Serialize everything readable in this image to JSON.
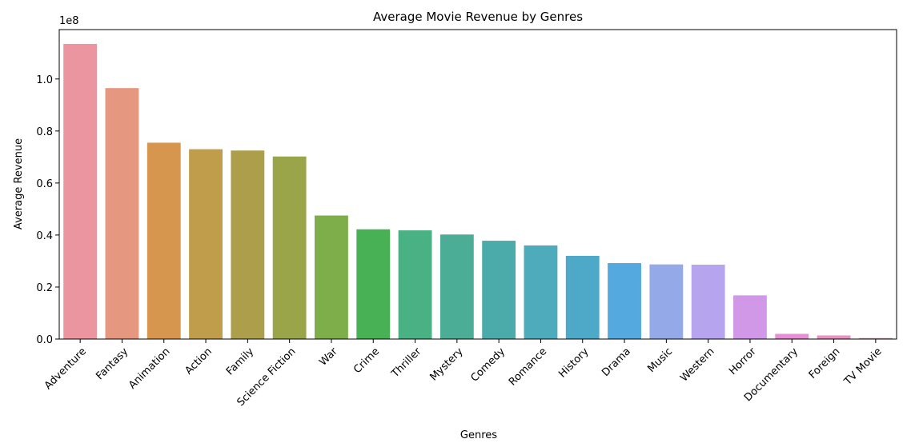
{
  "chart_data": {
    "type": "bar",
    "title": "Average Movie Revenue by Genres",
    "xlabel": "Genres",
    "ylabel": "Average Revenue",
    "y_offset_label": "1e8",
    "ylim": [
      0,
      1.19
    ],
    "yticks": [
      0.0,
      0.2,
      0.4,
      0.6,
      0.8,
      1.0
    ],
    "ytick_labels": [
      "0.0",
      "0.2",
      "0.4",
      "0.6",
      "0.8",
      "1.0"
    ],
    "grid": false,
    "categories": [
      "Adventure",
      "Fantasy",
      "Animation",
      "Action",
      "Family",
      "Science Fiction",
      "War",
      "Crime",
      "Thriller",
      "Mystery",
      "Comedy",
      "Romance",
      "History",
      "Drama",
      "Music",
      "Western",
      "Horror",
      "Documentary",
      "Foreign",
      "TV Movie"
    ],
    "values": [
      1.135,
      0.965,
      0.755,
      0.73,
      0.725,
      0.702,
      0.475,
      0.422,
      0.418,
      0.402,
      0.378,
      0.36,
      0.32,
      0.292,
      0.287,
      0.286,
      0.168,
      0.02,
      0.014,
      0.004
    ],
    "colors": [
      "#ea959f",
      "#e5977f",
      "#d7964d",
      "#bf9d4b",
      "#ad9e4b",
      "#9aa54a",
      "#7dae4a",
      "#48b155",
      "#4ab184",
      "#4bad95",
      "#4babab",
      "#4dabbc",
      "#4ea9c9",
      "#54a9de",
      "#94aae8",
      "#b6a4ee",
      "#d298e8",
      "#e78ed5",
      "#e993c5",
      "#e896b7"
    ]
  }
}
